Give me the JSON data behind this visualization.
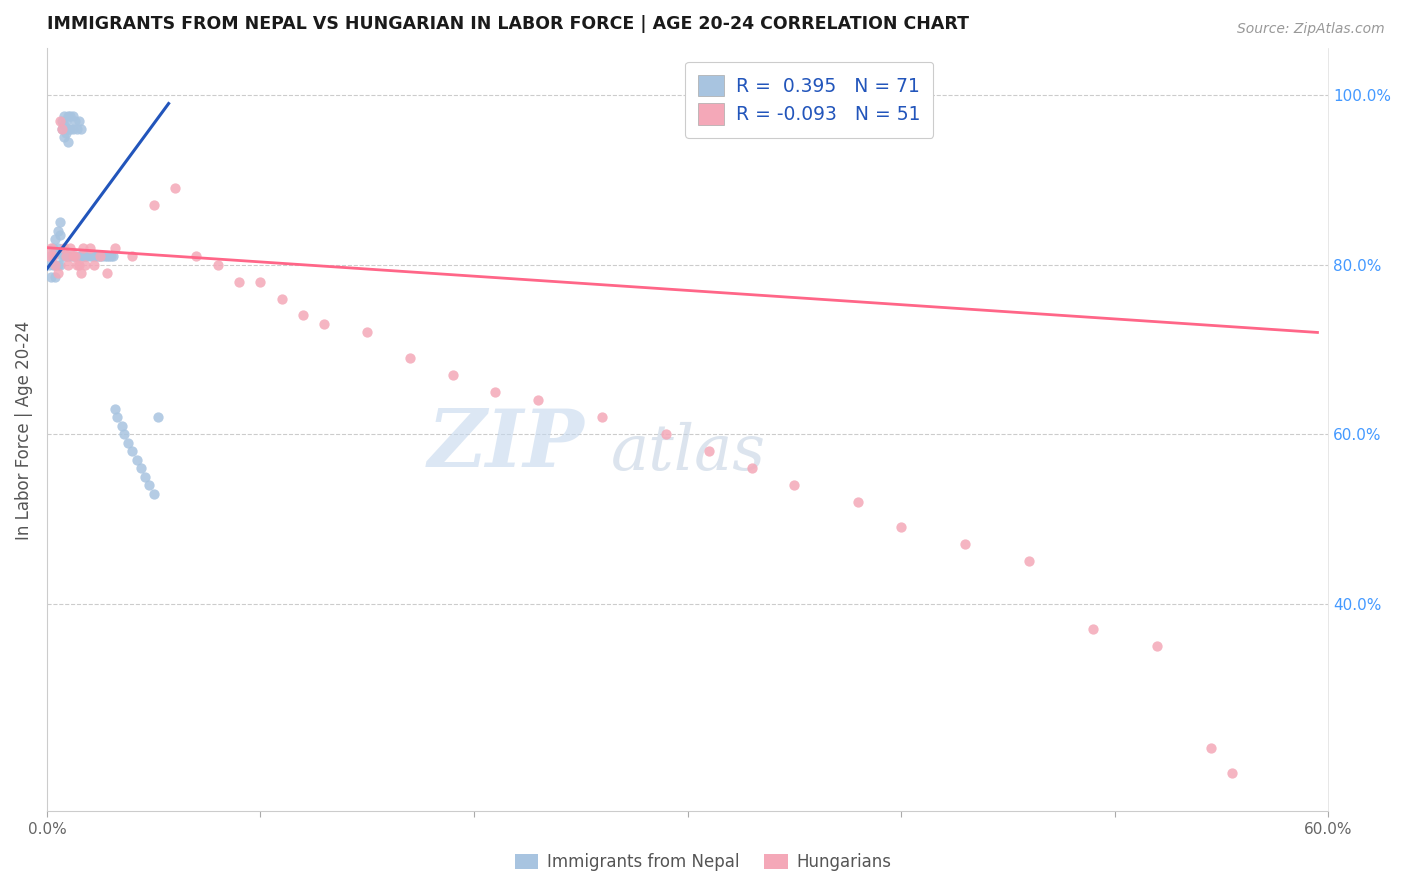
{
  "title": "IMMIGRANTS FROM NEPAL VS HUNGARIAN IN LABOR FORCE | AGE 20-24 CORRELATION CHART",
  "source": "Source: ZipAtlas.com",
  "ylabel": "In Labor Force | Age 20-24",
  "xlim": [
    0.0,
    0.6
  ],
  "ylim": [
    0.155,
    1.055
  ],
  "xtick_positions": [
    0.0,
    0.1,
    0.2,
    0.3,
    0.4,
    0.5,
    0.6
  ],
  "xtick_labels": [
    "0.0%",
    "",
    "",
    "",
    "",
    "",
    "60.0%"
  ],
  "ytick_positions": [
    0.4,
    0.6,
    0.8,
    1.0
  ],
  "ytick_labels": [
    "40.0%",
    "60.0%",
    "80.0%",
    "100.0%"
  ],
  "nepal_R": 0.395,
  "nepal_N": 71,
  "hungarian_R": -0.093,
  "hungarian_N": 51,
  "nepal_color": "#a8c4e0",
  "hungarian_color": "#f4a8b8",
  "nepal_line_color": "#2255bb",
  "hungarian_line_color": "#ff6688",
  "legend_text_color": "#2255bb",
  "right_axis_color": "#4499ff",
  "watermark_zip_color": "#c5d8ee",
  "watermark_atlas_color": "#c0cfe0",
  "nepal_x": [
    0.001,
    0.002,
    0.002,
    0.003,
    0.003,
    0.004,
    0.004,
    0.004,
    0.004,
    0.005,
    0.005,
    0.005,
    0.006,
    0.006,
    0.006,
    0.006,
    0.007,
    0.007,
    0.007,
    0.008,
    0.008,
    0.008,
    0.008,
    0.009,
    0.009,
    0.009,
    0.01,
    0.01,
    0.01,
    0.01,
    0.011,
    0.011,
    0.011,
    0.012,
    0.012,
    0.012,
    0.013,
    0.013,
    0.014,
    0.015,
    0.015,
    0.016,
    0.016,
    0.017,
    0.018,
    0.018,
    0.019,
    0.02,
    0.021,
    0.022,
    0.023,
    0.024,
    0.025,
    0.026,
    0.027,
    0.028,
    0.029,
    0.03,
    0.031,
    0.032,
    0.033,
    0.035,
    0.036,
    0.038,
    0.04,
    0.042,
    0.044,
    0.046,
    0.048,
    0.05,
    0.052
  ],
  "nepal_y": [
    0.8,
    0.81,
    0.785,
    0.82,
    0.8,
    0.83,
    0.815,
    0.8,
    0.785,
    0.84,
    0.82,
    0.8,
    0.85,
    0.835,
    0.815,
    0.8,
    0.97,
    0.96,
    0.81,
    0.975,
    0.965,
    0.95,
    0.81,
    0.97,
    0.955,
    0.81,
    0.975,
    0.96,
    0.945,
    0.81,
    0.975,
    0.96,
    0.81,
    0.975,
    0.96,
    0.81,
    0.97,
    0.81,
    0.96,
    0.97,
    0.81,
    0.96,
    0.81,
    0.81,
    0.81,
    0.81,
    0.81,
    0.81,
    0.81,
    0.81,
    0.81,
    0.81,
    0.81,
    0.81,
    0.81,
    0.81,
    0.81,
    0.81,
    0.81,
    0.63,
    0.62,
    0.61,
    0.6,
    0.59,
    0.58,
    0.57,
    0.56,
    0.55,
    0.54,
    0.53,
    0.62
  ],
  "hungarian_x": [
    0.001,
    0.002,
    0.003,
    0.004,
    0.005,
    0.006,
    0.007,
    0.008,
    0.009,
    0.01,
    0.011,
    0.012,
    0.013,
    0.014,
    0.015,
    0.016,
    0.017,
    0.018,
    0.02,
    0.022,
    0.025,
    0.028,
    0.032,
    0.04,
    0.05,
    0.06,
    0.07,
    0.08,
    0.09,
    0.1,
    0.11,
    0.12,
    0.13,
    0.15,
    0.17,
    0.19,
    0.21,
    0.23,
    0.26,
    0.29,
    0.31,
    0.33,
    0.35,
    0.38,
    0.4,
    0.43,
    0.46,
    0.49,
    0.52,
    0.545,
    0.555
  ],
  "hungarian_y": [
    0.81,
    0.82,
    0.81,
    0.8,
    0.79,
    0.97,
    0.96,
    0.82,
    0.81,
    0.8,
    0.82,
    0.81,
    0.81,
    0.8,
    0.8,
    0.79,
    0.82,
    0.8,
    0.82,
    0.8,
    0.81,
    0.79,
    0.82,
    0.81,
    0.87,
    0.89,
    0.81,
    0.8,
    0.78,
    0.78,
    0.76,
    0.74,
    0.73,
    0.72,
    0.69,
    0.67,
    0.65,
    0.64,
    0.62,
    0.6,
    0.58,
    0.56,
    0.54,
    0.52,
    0.49,
    0.47,
    0.45,
    0.37,
    0.35,
    0.23,
    0.2
  ],
  "nepal_line_x": [
    0.0,
    0.057
  ],
  "nepal_line_y": [
    0.795,
    0.99
  ],
  "hungarian_line_x": [
    0.0,
    0.595
  ],
  "hungarian_line_y": [
    0.82,
    0.72
  ]
}
